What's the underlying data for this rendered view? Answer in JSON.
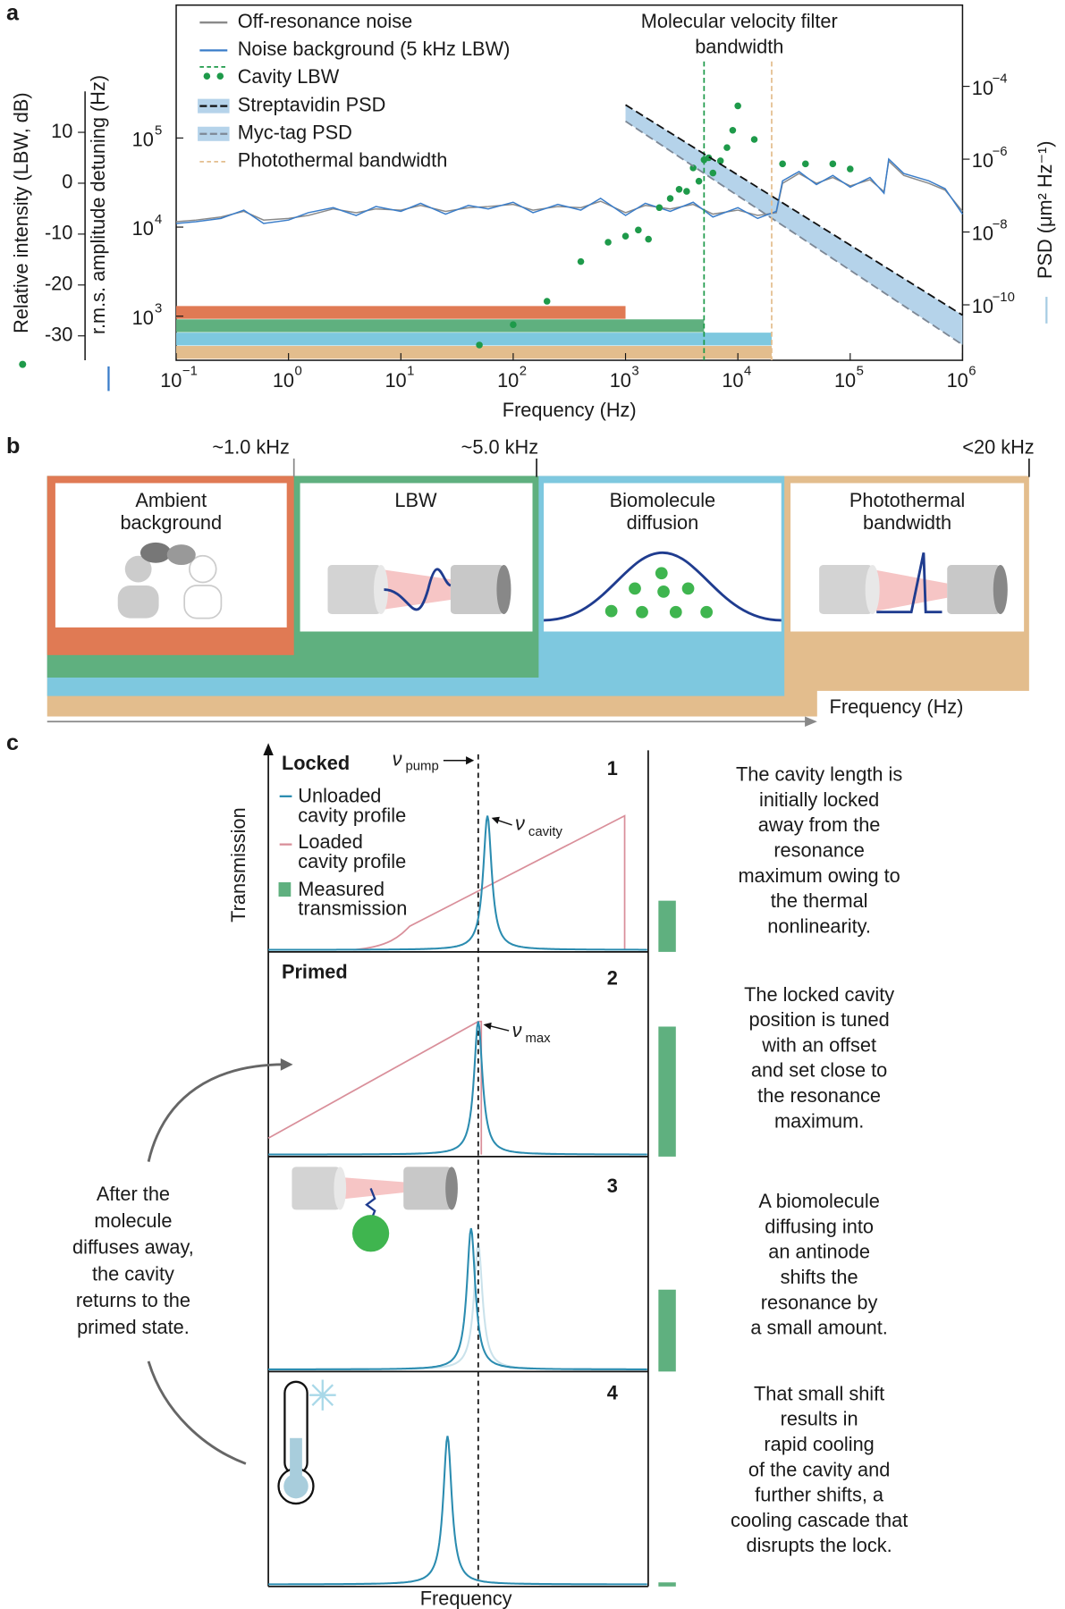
{
  "panel_labels": [
    "a",
    "b",
    "c"
  ],
  "chart_data": {
    "type": "line",
    "xlabel": "Frequency (Hz)",
    "ylabel": "r.m.s. amplitude detuning (Hz)",
    "y2label": "PSD (μm² Hz⁻¹)",
    "y3label": "Relative intensity (LBW, dB)",
    "xscale": "log",
    "yscale": "log",
    "y2scale": "log",
    "y3scale": "linear",
    "xlim": [
      0.1,
      1000000
    ],
    "xticks": [
      {
        "value": 0.1,
        "label": "10",
        "exponent": "−1"
      },
      {
        "value": 1,
        "label": "10",
        "exponent": "0"
      },
      {
        "value": 10,
        "label": "10",
        "exponent": "1"
      },
      {
        "value": 100,
        "label": "10",
        "exponent": "2"
      },
      {
        "value": 1000,
        "label": "10",
        "exponent": "3"
      },
      {
        "value": 10000,
        "label": "10",
        "exponent": "4"
      },
      {
        "value": 100000,
        "label": "10",
        "exponent": "5"
      },
      {
        "value": 1000000,
        "label": "10",
        "exponent": "6"
      }
    ],
    "ylim": [
      320,
      3100000
    ],
    "yticks": [
      {
        "value": 1000,
        "label": "10",
        "exponent": "3"
      },
      {
        "value": 10000,
        "label": "10",
        "exponent": "4"
      },
      {
        "value": 100000,
        "label": "10",
        "exponent": "5"
      }
    ],
    "y2lim": [
      3e-12,
      0.017
    ],
    "y2ticks": [
      {
        "value": 1e-10,
        "label": "10",
        "exponent": "−10"
      },
      {
        "value": 1e-08,
        "label": "10",
        "exponent": "−8"
      },
      {
        "value": 1e-06,
        "label": "10",
        "exponent": "−6"
      },
      {
        "value": 0.0001,
        "label": "10",
        "exponent": "−4"
      }
    ],
    "y3lim": [
      -34.8,
      35
    ],
    "y3ticks": [
      10,
      0,
      -10,
      -20,
      -30
    ],
    "annotation": [
      "Molecular velocity filter",
      "bandwidth"
    ],
    "series": [
      {
        "name": "Off-resonance noise",
        "kind": "line",
        "axis": "y",
        "color": "#8a8a8a",
        "x": [
          0.1,
          0.15,
          0.25,
          0.4,
          0.6,
          1,
          1.5,
          2.5,
          4,
          6,
          10,
          15,
          25,
          40,
          60,
          100,
          150,
          250,
          400,
          600,
          1000,
          1500,
          2500,
          4000,
          6000,
          10000,
          15000,
          22000,
          25000,
          35000,
          50000,
          70000,
          100000,
          150000,
          200000,
          220000,
          300000,
          500000,
          700000,
          1000000
        ],
        "values": [
          11500,
          12000,
          13000,
          15000,
          12000,
          12500,
          13500,
          16000,
          14500,
          16000,
          15500,
          17500,
          15000,
          16500,
          17000,
          18000,
          15500,
          17000,
          16500,
          19500,
          14500,
          17500,
          16000,
          18000,
          14000,
          15500,
          13500,
          14500,
          31000,
          40000,
          31000,
          36000,
          29000,
          34000,
          25000,
          55000,
          38000,
          31000,
          26000,
          15000
        ]
      },
      {
        "name": "Noise background (5 kHz LBW)",
        "kind": "line",
        "axis": "y",
        "color": "#3a7dc9",
        "x": [
          0.1,
          0.15,
          0.25,
          0.4,
          0.6,
          1,
          1.5,
          2.5,
          4,
          6,
          10,
          15,
          25,
          40,
          60,
          100,
          150,
          250,
          400,
          600,
          1000,
          1500,
          2500,
          4000,
          6000,
          10000,
          15000,
          22000,
          25000,
          35000,
          50000,
          70000,
          100000,
          150000,
          200000,
          220000,
          300000,
          500000,
          700000,
          1000000
        ],
        "values": [
          11000,
          11500,
          12500,
          15500,
          11000,
          12000,
          14500,
          16500,
          13500,
          17000,
          15000,
          18500,
          14000,
          17500,
          16000,
          19000,
          14500,
          18000,
          15500,
          21000,
          13500,
          18500,
          15000,
          19000,
          13000,
          16500,
          12500,
          15000,
          33000,
          42000,
          30000,
          38000,
          28000,
          36000,
          24000,
          58000,
          40000,
          33000,
          27000,
          14000
        ]
      },
      {
        "name": "Cavity LBW",
        "kind": "scatter",
        "axis": "y3",
        "color": "#1e9a4a",
        "threshold_x": 5000,
        "x": [
          50,
          100,
          200,
          400,
          700,
          1000,
          1300,
          1600,
          2000,
          2500,
          3000,
          3500,
          4000,
          4500,
          5000,
          5500,
          6000,
          7000,
          8000,
          9000,
          10000,
          14000,
          25000,
          40000,
          70000,
          100000
        ],
        "values": [
          -31.8,
          -27.8,
          -23.2,
          -15.4,
          -11.6,
          -10.4,
          -9.2,
          -11,
          -4.8,
          -3,
          -1.2,
          -1.6,
          3,
          0.4,
          4.6,
          5,
          2,
          4.4,
          7,
          10.4,
          15.2,
          8.6,
          3.8,
          3.8,
          3.8,
          2.8
        ]
      },
      {
        "name": "Streptavidin PSD",
        "kind": "psd",
        "axis": "y2",
        "color": "#111111",
        "fill": "#b5d3ea",
        "x": [
          1000,
          1000000
        ],
        "values": [
          3.1e-05,
          5.2e-11
        ]
      },
      {
        "name": "Myc-tag PSD",
        "kind": "psd",
        "axis": "y2",
        "color": "#7d8896",
        "fill": "#b5d3ea",
        "x": [
          1000,
          1000000
        ],
        "values": [
          1.1e-05,
          8e-12
        ]
      },
      {
        "name": "Photothermal bandwidth",
        "kind": "vline",
        "color": "#e3bd8d",
        "x": [
          20000
        ]
      }
    ],
    "bands": [
      {
        "color": "#e07a54",
        "range": [
          0.1,
          1000
        ]
      },
      {
        "color": "#5fb07f",
        "range": [
          0.1,
          5000
        ]
      },
      {
        "color": "#7ec8df",
        "range": [
          0.1,
          20000
        ]
      },
      {
        "color": "#e3bd8d",
        "range": [
          0.1,
          20000
        ]
      }
    ]
  },
  "panel_b": {
    "thresholds": [
      "~1.0 kHz",
      "~5.0 kHz",
      "<20 kHz"
    ],
    "boxes": [
      [
        "Ambient",
        "background"
      ],
      [
        "LBW"
      ],
      [
        "Biomolecule",
        "diffusion"
      ],
      [
        "Photothermal",
        "bandwidth"
      ]
    ],
    "axis_label": "Frequency (Hz)"
  },
  "panel_c": {
    "ylabel": "Transmission",
    "xlabel": "Frequency",
    "legend": [
      [
        "Unloaded",
        "cavity profile"
      ],
      [
        "Loaded",
        "cavity profile"
      ],
      [
        "Measured",
        "transmission"
      ]
    ],
    "annotations": {
      "pump": [
        "ν",
        "pump"
      ],
      "cavity": [
        "ν",
        "cavity"
      ],
      "max": [
        "ν",
        "max"
      ]
    },
    "states": [
      {
        "title": "Locked",
        "number": "1",
        "description": [
          "The cavity length is",
          "initially locked",
          "away from the",
          "resonance",
          "maximum owing to",
          "the thermal",
          "nonlinearity."
        ]
      },
      {
        "title": "Primed",
        "number": "2",
        "description": [
          "The locked cavity",
          "position is tuned",
          "with an offset",
          "and set close to",
          "the resonance",
          "maximum."
        ]
      },
      {
        "number": "3",
        "description": [
          "A biomolecule",
          "diffusing into",
          "an antinode",
          "shifts the",
          "resonance by",
          "a small amount."
        ]
      },
      {
        "number": "4",
        "description": [
          "That small shift",
          "results in",
          "rapid cooling",
          "of the cavity and",
          "further shifts, a",
          "cooling cascade that",
          "disrupts the lock."
        ]
      }
    ],
    "return_note": [
      "After the",
      "molecule",
      "diffuses away,",
      "the cavity",
      "returns to the",
      "primed state."
    ]
  }
}
